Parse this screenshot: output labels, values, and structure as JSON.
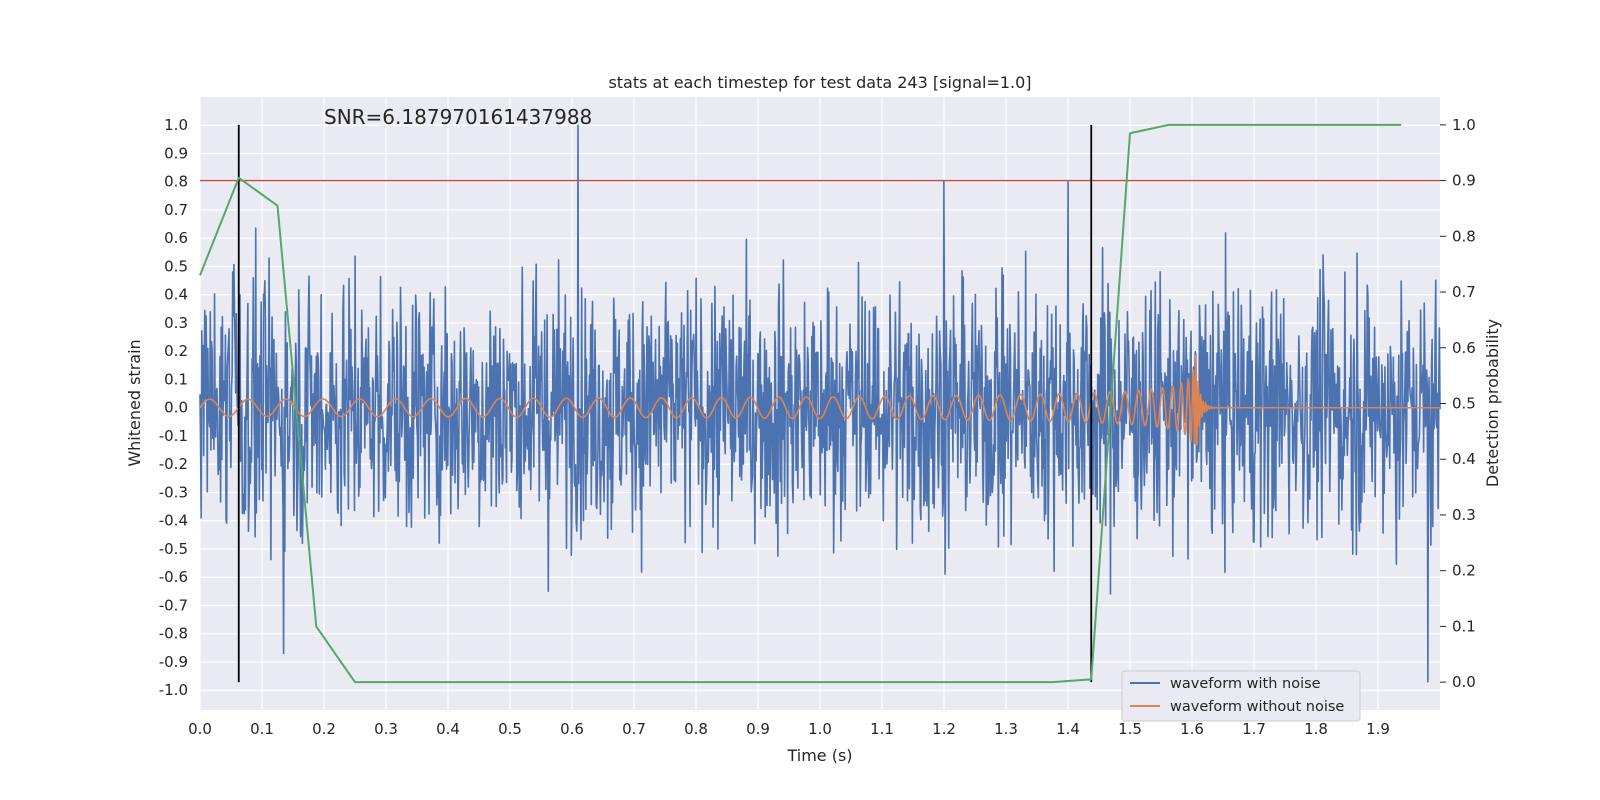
{
  "chart_data": {
    "type": "line",
    "title": "stats at each timestep for test data 243 [signal=1.0]",
    "annotation": "SNR=6.187970161437988",
    "xlabel": "Time (s)",
    "ylabel": "Whitened strain",
    "y2label": "Detection probability",
    "xlim": [
      0.0,
      2.0
    ],
    "ylim": [
      -1.07,
      1.1
    ],
    "y2lim": [
      -0.05,
      1.05
    ],
    "x_ticks": [
      "0.0",
      "0.1",
      "0.2",
      "0.3",
      "0.4",
      "0.5",
      "0.6",
      "0.7",
      "0.8",
      "0.9",
      "1.0",
      "1.1",
      "1.2",
      "1.3",
      "1.4",
      "1.5",
      "1.6",
      "1.7",
      "1.8",
      "1.9"
    ],
    "y_ticks": [
      "1.0",
      "0.9",
      "0.8",
      "0.7",
      "0.6",
      "0.5",
      "0.4",
      "0.3",
      "0.2",
      "0.1",
      "0.0",
      "-0.1",
      "-0.2",
      "-0.3",
      "-0.4",
      "-0.5",
      "-0.6",
      "-0.7",
      "-0.8",
      "-0.9",
      "-1.0"
    ],
    "y2_ticks": [
      "1.0",
      "0.9",
      "0.8",
      "0.7",
      "0.6",
      "0.5",
      "0.4",
      "0.3",
      "0.2",
      "0.1",
      "0.0"
    ],
    "grid": true,
    "legend_position": "bottom-right",
    "threshold": {
      "axis": "right",
      "value": 0.9,
      "color": "#c44e52"
    },
    "vlines": {
      "x": [
        0.0625,
        1.4375
      ],
      "color": "#000000"
    },
    "series": [
      {
        "name": "waveform with noise",
        "axis": "left",
        "color": "#4c72b0",
        "kind": "noise",
        "n_samples": 2048,
        "amplitude_std": 0.22,
        "notable_peaks": [
          {
            "x": 0.61,
            "y": 1.0
          },
          {
            "x": 1.2,
            "y": 0.8
          },
          {
            "x": 1.4,
            "y": 0.8
          },
          {
            "x": 1.98,
            "y": -0.97
          },
          {
            "x": 0.135,
            "y": -0.87
          }
        ]
      },
      {
        "name": "waveform without noise",
        "axis": "left",
        "color": "#dd8452",
        "kind": "chirp",
        "t_merger": 1.605,
        "max_amplitude": 0.22
      },
      {
        "name": "",
        "axis": "right",
        "color": "#55a868",
        "kind": "probability",
        "x": [
          0.0,
          0.0625,
          0.125,
          0.1875,
          0.25,
          0.3125,
          0.375,
          0.4375,
          0.5,
          0.5625,
          0.625,
          0.6875,
          0.75,
          0.8125,
          0.875,
          0.9375,
          1.0,
          1.0625,
          1.125,
          1.1875,
          1.25,
          1.3125,
          1.375,
          1.4375,
          1.5,
          1.5625,
          1.625,
          1.6875,
          1.75,
          1.8125,
          1.875,
          1.9375
        ],
        "y": [
          0.73,
          0.905,
          0.855,
          0.1,
          0.0,
          0.0,
          0.0,
          0.0,
          0.0,
          0.0,
          0.0,
          0.0,
          0.0,
          0.0,
          0.0,
          0.0,
          0.0,
          0.0,
          0.0,
          0.0,
          0.0,
          0.0,
          0.0,
          0.005,
          0.985,
          1.0,
          1.0,
          1.0,
          1.0,
          1.0,
          1.0,
          1.0
        ]
      }
    ]
  }
}
